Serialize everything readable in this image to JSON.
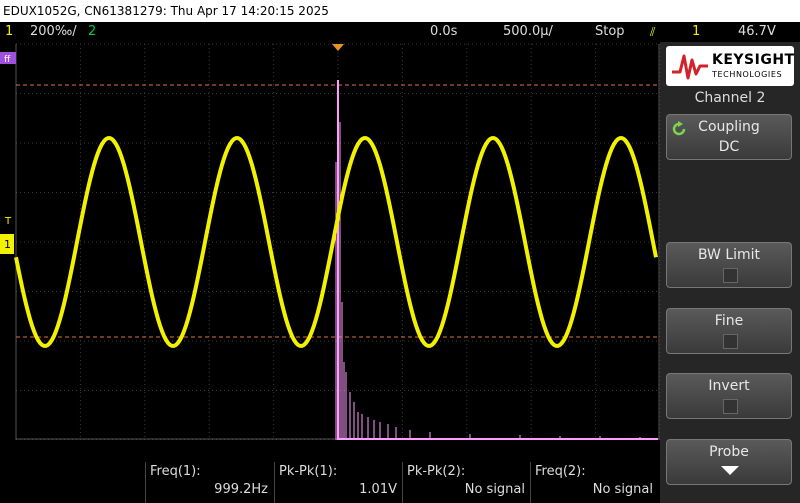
{
  "title_bar": {
    "text": "EDUX1052G, CN61381279: Thu Apr 17 14:20:15 2025"
  },
  "status": {
    "ch1_num": "1",
    "ch1_scale": "200‰/",
    "ch2_num": "2",
    "time_delay": "0.0s",
    "time_scale": "500.0µ/",
    "run_state": "Stop",
    "trig_channel": "1",
    "trig_level": "46.7V"
  },
  "screen": {
    "trigger_marker": "T",
    "ch1_marker": "1"
  },
  "measurements": [
    {
      "label": "Freq(1):",
      "value": "999.2Hz"
    },
    {
      "label": "Pk-Pk(1):",
      "value": "1.01V"
    },
    {
      "label": "Pk-Pk(2):",
      "value": "No signal"
    },
    {
      "label": "Freq(2):",
      "value": "No signal"
    }
  ],
  "panel": {
    "logo_brand": "KEYSIGHT",
    "logo_sub": "TECHNOLOGIES",
    "title": "Channel 2",
    "coupling_label": "Coupling",
    "coupling_value": "DC",
    "bw_limit_label": "BW Limit",
    "fine_label": "Fine",
    "invert_label": "Invert",
    "probe_label": "Probe"
  },
  "colors": {
    "ch1": "#f2f200",
    "ch2": "#00cc44",
    "math": "#ff9cff",
    "cursor": "#e07040"
  }
}
